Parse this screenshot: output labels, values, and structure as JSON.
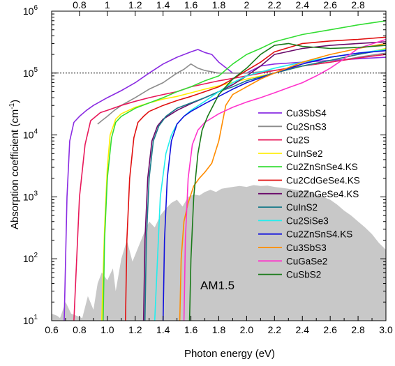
{
  "chart_data": {
    "type": "line",
    "title": "",
    "xlabel": "Photon energy (eV)",
    "ylabel_main": "Absorption coefficient (cm",
    "ylabel_sup": "-1",
    "ylabel_close": ")",
    "xlim": [
      0.6,
      3.0
    ],
    "ylim": [
      10,
      1000000
    ],
    "yscale": "log",
    "bottom_ticks": [
      "0.6",
      "0.8",
      "1.0",
      "1.2",
      "1.4",
      "1.6",
      "1.8",
      "2.0",
      "2.2",
      "2.4",
      "2.6",
      "2.8",
      "3.0"
    ],
    "top_ticks": [
      "0.8",
      "1",
      "1.2",
      "1.4",
      "1.6",
      "1.8",
      "2",
      "2.2",
      "2.4",
      "2.6",
      "2.8"
    ],
    "y_ticks": [
      {
        "base": "10",
        "exp": "1",
        "value": 10
      },
      {
        "base": "10",
        "exp": "2",
        "value": 100
      },
      {
        "base": "10",
        "exp": "3",
        "value": 1000
      },
      {
        "base": "10",
        "exp": "4",
        "value": 10000
      },
      {
        "base": "10",
        "exp": "5",
        "value": 100000
      },
      {
        "base": "10",
        "exp": "6",
        "value": 1000000
      }
    ],
    "reference_line": {
      "y": 100000,
      "style": "dotted"
    },
    "annotation": "AM1.5",
    "spectrum": {
      "color": "#c8c8c8",
      "x": [
        0.6,
        0.64,
        0.66,
        0.7,
        0.74,
        0.78,
        0.82,
        0.86,
        0.9,
        0.93,
        0.96,
        1.0,
        1.04,
        1.06,
        1.1,
        1.14,
        1.18,
        1.22,
        1.26,
        1.3,
        1.34,
        1.38,
        1.42,
        1.46,
        1.5,
        1.54,
        1.58,
        1.62,
        1.66,
        1.7,
        1.74,
        1.78,
        1.82,
        1.86,
        1.9,
        1.95,
        2.0,
        2.05,
        2.1,
        2.15,
        2.2,
        2.25,
        2.3,
        2.35,
        2.4,
        2.45,
        2.5,
        2.55,
        2.6,
        2.65,
        2.7,
        2.75,
        2.8,
        2.85,
        2.9,
        2.95,
        3.0
      ],
      "y": [
        13,
        12,
        11,
        20,
        13,
        12,
        11,
        25,
        15,
        40,
        60,
        45,
        70,
        30,
        100,
        200,
        90,
        150,
        250,
        400,
        320,
        500,
        650,
        800,
        900,
        700,
        1000,
        1100,
        1050,
        1200,
        1300,
        1200,
        1350,
        1400,
        1450,
        1500,
        1450,
        1550,
        1500,
        1520,
        1450,
        1400,
        1350,
        1300,
        1250,
        1200,
        1100,
        1000,
        900,
        750,
        600,
        500,
        400,
        320,
        250,
        180,
        140
      ]
    },
    "series": [
      {
        "name": "Cu3SbS4",
        "color": "#8a2be2",
        "x": [
          0.69,
          0.71,
          0.73,
          0.76,
          0.8,
          0.85,
          0.9,
          1.0,
          1.1,
          1.2,
          1.3,
          1.4,
          1.5,
          1.6,
          1.65,
          1.7,
          1.75,
          1.8,
          1.9,
          2.0,
          2.1,
          2.2,
          2.3,
          2.4,
          2.5,
          2.6,
          2.7,
          2.8,
          2.9,
          3.0
        ],
        "y": [
          10,
          1000,
          8000,
          16000,
          20000,
          25000,
          30000,
          40000,
          52000,
          70000,
          100000,
          140000,
          180000,
          220000,
          240000,
          215000,
          200000,
          150000,
          100000,
          100000,
          130000,
          140000,
          145000,
          150000,
          155000,
          160000,
          165000,
          170000,
          175000,
          180000
        ]
      },
      {
        "name": "Cu2SnS3",
        "color": "#8c8c8c",
        "x": [
          0.93,
          0.96,
          1.0,
          1.05,
          1.1,
          1.2,
          1.3,
          1.4,
          1.5,
          1.55,
          1.6,
          1.65,
          1.7,
          1.8,
          1.9,
          2.0,
          2.2,
          2.4,
          2.6,
          2.8,
          3.0
        ],
        "y": [
          15000,
          17000,
          20000,
          25000,
          30000,
          40000,
          55000,
          70000,
          100000,
          115000,
          140000,
          120000,
          110000,
          100000,
          100000,
          100000,
          110000,
          130000,
          150000,
          180000,
          210000
        ]
      },
      {
        "name": "Cu2S",
        "color": "#e8185a",
        "x": [
          0.76,
          0.78,
          0.8,
          0.84,
          0.88,
          0.95,
          1.0,
          1.1,
          1.2,
          1.3,
          1.4,
          1.5,
          1.6,
          1.8,
          2.0,
          2.2,
          2.4,
          2.6,
          2.8,
          3.0
        ],
        "y": [
          10,
          100,
          1000,
          7000,
          17000,
          23000,
          25000,
          30000,
          35000,
          40000,
          45000,
          50000,
          60000,
          75000,
          90000,
          110000,
          130000,
          150000,
          175000,
          200000
        ]
      },
      {
        "name": "CuInSe2",
        "color": "#ffee00",
        "x": [
          0.96,
          0.98,
          1.0,
          1.02,
          1.06,
          1.1,
          1.2,
          1.3,
          1.4,
          1.5,
          1.6,
          1.7,
          1.8,
          2.0,
          2.2,
          2.4,
          2.6,
          2.8,
          3.0
        ],
        "y": [
          10,
          300,
          3000,
          10000,
          18000,
          22000,
          28000,
          33000,
          38000,
          42000,
          48000,
          55000,
          62000,
          80000,
          100000,
          130000,
          160000,
          200000,
          250000
        ]
      },
      {
        "name": "Cu2ZnSnSe4.KS",
        "color": "#33dd33",
        "x": [
          0.97,
          0.98,
          1.0,
          1.03,
          1.06,
          1.1,
          1.2,
          1.3,
          1.4,
          1.5,
          1.6,
          1.7,
          1.8,
          1.9,
          2.0,
          2.1,
          2.2,
          2.4,
          2.6,
          2.8,
          3.0
        ],
        "y": [
          10,
          200,
          2000,
          9000,
          16000,
          20000,
          27000,
          33000,
          40000,
          50000,
          60000,
          75000,
          90000,
          140000,
          200000,
          250000,
          320000,
          420000,
          500000,
          600000,
          700000
        ]
      },
      {
        "name": "Cu2CdGeSe4.KS",
        "color": "#e01010",
        "x": [
          1.13,
          1.14,
          1.16,
          1.19,
          1.22,
          1.26,
          1.3,
          1.4,
          1.5,
          1.6,
          1.7,
          1.8,
          1.9,
          2.0,
          2.1,
          2.2,
          2.4,
          2.6,
          2.8,
          3.0
        ],
        "y": [
          10,
          200,
          2000,
          9000,
          16000,
          20000,
          24000,
          30000,
          36000,
          42000,
          50000,
          60000,
          80000,
          110000,
          150000,
          220000,
          300000,
          330000,
          350000,
          380000
        ]
      },
      {
        "name": "Cu2ZnGeSe4.KS",
        "color": "#6a0a6a",
        "x": [
          1.26,
          1.27,
          1.29,
          1.32,
          1.36,
          1.4,
          1.5,
          1.6,
          1.7,
          1.8,
          1.9,
          2.0,
          2.1,
          2.2,
          2.4,
          2.6,
          2.8,
          3.0
        ],
        "y": [
          10,
          200,
          2000,
          8000,
          14000,
          18000,
          25000,
          32000,
          40000,
          50000,
          65000,
          90000,
          130000,
          200000,
          250000,
          280000,
          300000,
          320000
        ]
      },
      {
        "name": "CuInS2",
        "color": "#1a7a8a",
        "x": [
          1.27,
          1.28,
          1.3,
          1.33,
          1.37,
          1.42,
          1.5,
          1.6,
          1.7,
          1.8,
          1.9,
          2.0,
          2.2,
          2.4,
          2.6,
          2.8,
          3.0
        ],
        "y": [
          10,
          200,
          2000,
          8000,
          14000,
          20000,
          27000,
          33000,
          40000,
          50000,
          60000,
          75000,
          100000,
          130000,
          160000,
          200000,
          240000
        ]
      },
      {
        "name": "Cu2SiSe3",
        "color": "#22eeee",
        "x": [
          1.34,
          1.36,
          1.38,
          1.42,
          1.46,
          1.5,
          1.55,
          1.6,
          1.7,
          1.8,
          1.9,
          2.0,
          2.2,
          2.4,
          2.6,
          2.8,
          3.0
        ],
        "y": [
          10,
          100,
          1000,
          5000,
          10000,
          15000,
          20000,
          25000,
          35000,
          50000,
          70000,
          90000,
          120000,
          150000,
          180000,
          210000,
          240000
        ]
      },
      {
        "name": "Cu2ZnSnS4.KS",
        "color": "#1010dd",
        "x": [
          1.4,
          1.41,
          1.43,
          1.46,
          1.5,
          1.55,
          1.6,
          1.7,
          1.8,
          1.9,
          2.0,
          2.2,
          2.4,
          2.6,
          2.8,
          3.0
        ],
        "y": [
          10,
          200,
          2000,
          8000,
          15000,
          20000,
          24000,
          32000,
          42000,
          55000,
          70000,
          100000,
          140000,
          180000,
          210000,
          230000
        ]
      },
      {
        "name": "Cu3SbS3",
        "color": "#ff8c00",
        "x": [
          1.52,
          1.53,
          1.55,
          1.58,
          1.62,
          1.66,
          1.7,
          1.75,
          1.8,
          1.85,
          1.9,
          2.0,
          2.1,
          2.2,
          2.4,
          2.6,
          2.8,
          3.0
        ],
        "y": [
          10,
          100,
          400,
          800,
          1500,
          2000,
          2500,
          3500,
          8000,
          30000,
          45000,
          60000,
          80000,
          100000,
          150000,
          200000,
          250000,
          300000
        ]
      },
      {
        "name": "CuGaSe2",
        "color": "#ff33cc",
        "x": [
          1.55,
          1.56,
          1.58,
          1.61,
          1.65,
          1.7,
          1.8,
          1.9,
          2.0,
          2.1,
          2.2,
          2.3,
          2.4,
          2.5,
          2.6,
          2.7,
          2.8,
          3.0
        ],
        "y": [
          10,
          200,
          2000,
          7000,
          12000,
          16000,
          22000,
          28000,
          34000,
          40000,
          48000,
          58000,
          70000,
          90000,
          120000,
          170000,
          250000,
          350000
        ]
      },
      {
        "name": "CuSbS2",
        "color": "#1a7a1a",
        "x": [
          1.59,
          1.6,
          1.62,
          1.65,
          1.68,
          1.72,
          1.76,
          1.8,
          1.9,
          2.0,
          2.1,
          2.2,
          2.3,
          2.4,
          2.6,
          2.8,
          3.0
        ],
        "y": [
          10,
          100,
          1000,
          5000,
          12000,
          20000,
          30000,
          45000,
          80000,
          120000,
          200000,
          280000,
          300000,
          270000,
          250000,
          260000,
          280000
        ]
      }
    ]
  }
}
